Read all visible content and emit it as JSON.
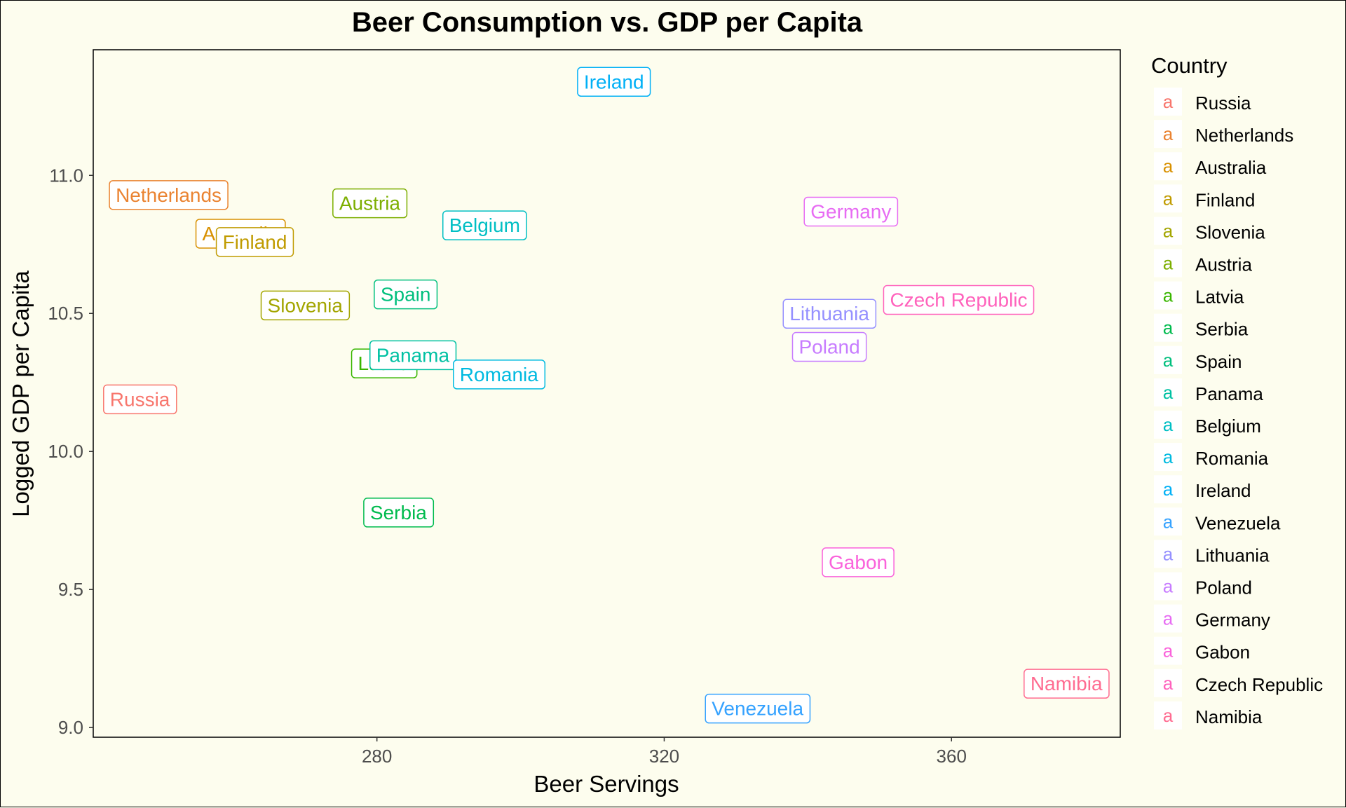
{
  "chart_data": {
    "type": "scatter",
    "title": "Beer Consumption vs. GDP per Capita",
    "xlabel": "Beer Servings",
    "ylabel": "Logged GDP per Capita",
    "xlim": [
      240.5,
      383.5
    ],
    "ylim": [
      8.965,
      11.455
    ],
    "x_ticks": [
      {
        "value": 280,
        "label": "280"
      },
      {
        "value": 320,
        "label": "320"
      },
      {
        "value": 360,
        "label": "360"
      }
    ],
    "y_ticks": [
      {
        "value": 9.0,
        "label": "9.0"
      },
      {
        "value": 9.5,
        "label": "9.5"
      },
      {
        "value": 10.0,
        "label": "10.0"
      },
      {
        "value": 10.5,
        "label": "10.5"
      },
      {
        "value": 11.0,
        "label": "11.0"
      }
    ],
    "grid": false,
    "legend": {
      "title": "Country",
      "position": "right",
      "key_glyph": "a"
    },
    "points": [
      {
        "name": "Russia",
        "x": 247,
        "y": 10.19,
        "color": "#F8766D"
      },
      {
        "name": "Netherlands",
        "x": 251,
        "y": 10.93,
        "color": "#EA8331"
      },
      {
        "name": "Australia",
        "x": 261,
        "y": 10.79,
        "color": "#D89000"
      },
      {
        "name": "Finland",
        "x": 263,
        "y": 10.76,
        "color": "#C09B00"
      },
      {
        "name": "Slovenia",
        "x": 270,
        "y": 10.53,
        "color": "#A3A500"
      },
      {
        "name": "Austria",
        "x": 279,
        "y": 10.9,
        "color": "#7CAE00"
      },
      {
        "name": "Latvia",
        "x": 281,
        "y": 10.32,
        "color": "#39B600"
      },
      {
        "name": "Serbia",
        "x": 283,
        "y": 9.78,
        "color": "#00BB4E"
      },
      {
        "name": "Spain",
        "x": 284,
        "y": 10.57,
        "color": "#00BF7D"
      },
      {
        "name": "Panama",
        "x": 285,
        "y": 10.35,
        "color": "#00C1A3"
      },
      {
        "name": "Belgium",
        "x": 295,
        "y": 10.82,
        "color": "#00BFC4"
      },
      {
        "name": "Romania",
        "x": 297,
        "y": 10.28,
        "color": "#00BAE0"
      },
      {
        "name": "Ireland",
        "x": 313,
        "y": 11.34,
        "color": "#00B0F6"
      },
      {
        "name": "Venezuela",
        "x": 333,
        "y": 9.07,
        "color": "#35A2FF"
      },
      {
        "name": "Lithuania",
        "x": 343,
        "y": 10.5,
        "color": "#9590FF"
      },
      {
        "name": "Poland",
        "x": 343,
        "y": 10.38,
        "color": "#C77CFF"
      },
      {
        "name": "Germany",
        "x": 346,
        "y": 10.87,
        "color": "#E76BF3"
      },
      {
        "name": "Gabon",
        "x": 347,
        "y": 9.6,
        "color": "#FA62DB"
      },
      {
        "name": "Czech Republic",
        "x": 361,
        "y": 10.55,
        "color": "#FF62BC"
      },
      {
        "name": "Namibia",
        "x": 376,
        "y": 9.16,
        "color": "#FF6C91"
      }
    ],
    "legend_order": [
      "Russia",
      "Netherlands",
      "Australia",
      "Finland",
      "Slovenia",
      "Austria",
      "Latvia",
      "Serbia",
      "Spain",
      "Panama",
      "Belgium",
      "Romania",
      "Ireland",
      "Venezuela",
      "Lithuania",
      "Poland",
      "Germany",
      "Gabon",
      "Czech Republic",
      "Namibia"
    ]
  }
}
